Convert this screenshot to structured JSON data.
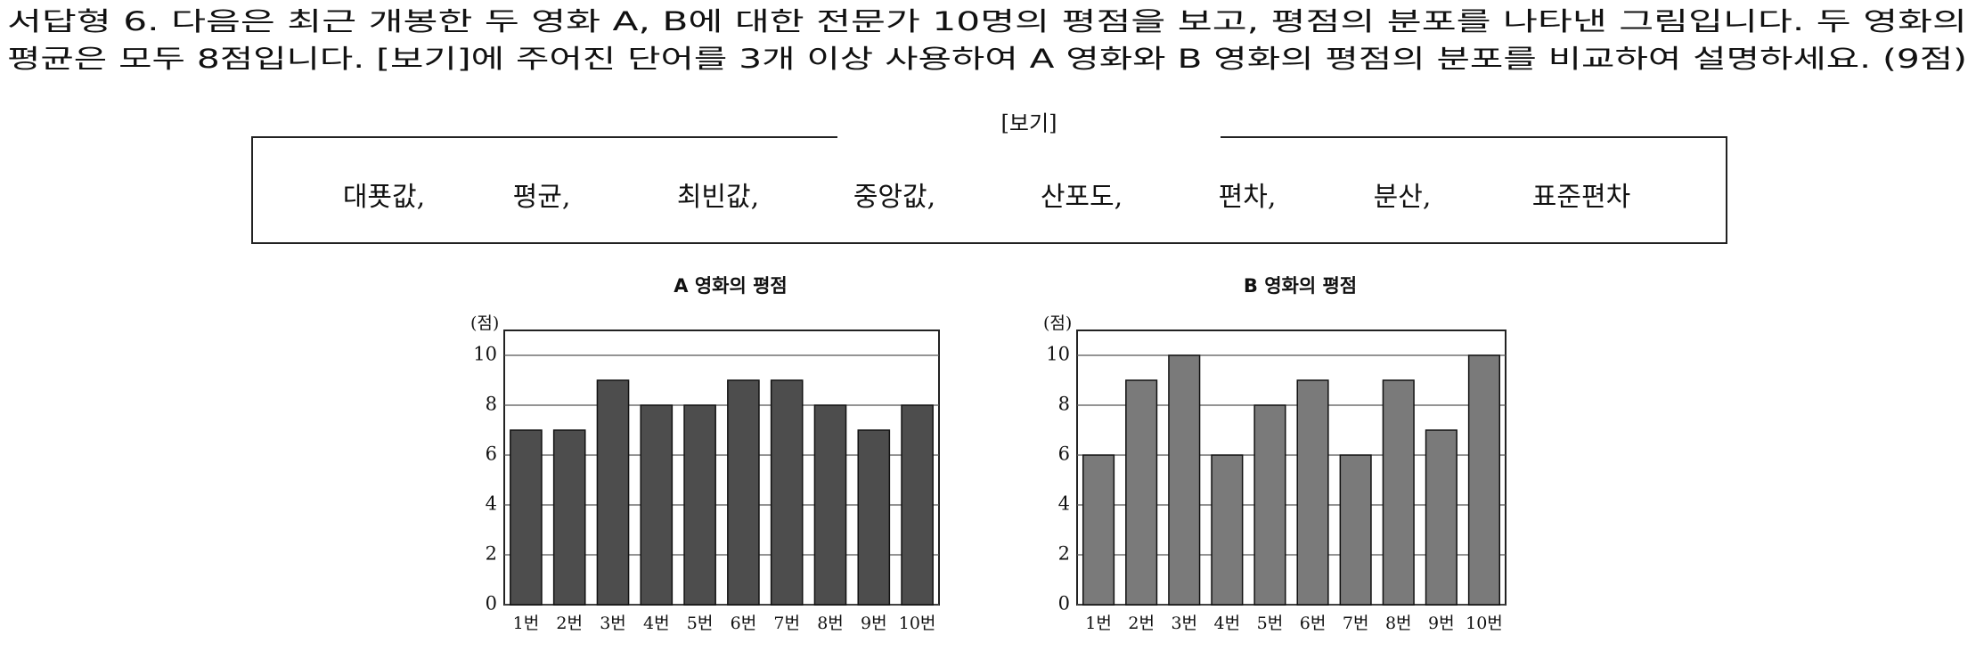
{
  "question": {
    "lines": [
      "서답형 6. 다음은 최근 개봉한 두 영화 A, B에 대한 전문가 10명의 평점을 보고, 평점의 분포를 나타낸 그림입니다. 두 영화의",
      "평균은 모두 8점입니다. [보기]에 주어진 단어를 3개 이상 사용하여 A 영화와 B 영화의 평점의 분포를 비교하여 설명하세요. (9점)"
    ]
  },
  "box": {
    "title": "[보기]",
    "words": [
      "대푯값,",
      "평균,",
      "최빈값,",
      "중앙값,",
      "산포도,",
      "편차,",
      "분산,",
      "표준편차"
    ]
  },
  "chart_data": [
    {
      "type": "bar",
      "title": "A 영화의 평점",
      "y_label": "(점)",
      "categories": [
        "1번",
        "2번",
        "3번",
        "4번",
        "5번",
        "6번",
        "7번",
        "8번",
        "9번",
        "10번"
      ],
      "values": [
        7,
        7,
        9,
        8,
        8,
        9,
        9,
        8,
        7,
        8
      ],
      "color": "#4d4d4d",
      "ylim": [
        0,
        11
      ],
      "yticks": [
        0,
        2,
        4,
        6,
        8,
        10
      ],
      "grid": true
    },
    {
      "type": "bar",
      "title": "B 영화의 평점",
      "y_label": "(점)",
      "categories": [
        "1번",
        "2번",
        "3번",
        "4번",
        "5번",
        "6번",
        "7번",
        "8번",
        "9번",
        "10번"
      ],
      "values": [
        6,
        9,
        10,
        6,
        8,
        9,
        6,
        9,
        7,
        10
      ],
      "color": "#7a7a7a",
      "ylim": [
        0,
        11
      ],
      "yticks": [
        0,
        2,
        4,
        6,
        8,
        10
      ],
      "grid": true
    }
  ]
}
